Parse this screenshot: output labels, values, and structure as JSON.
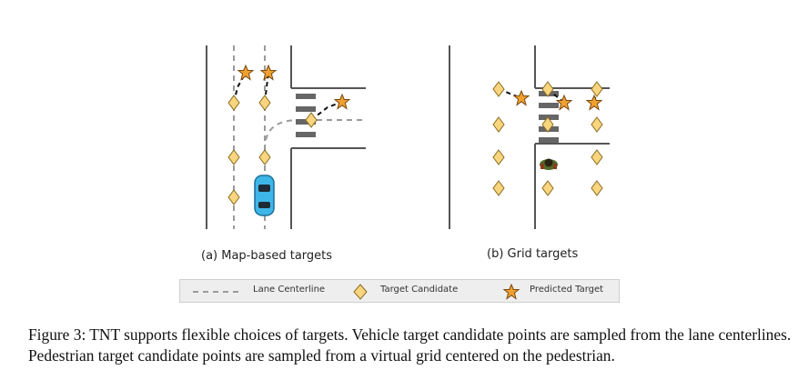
{
  "panels": {
    "a_label": "(a) Map-based targets",
    "b_label": "(b) Grid targets"
  },
  "legend": {
    "lane_centerline": "Lane Centerline",
    "target_candidate": "Target Candidate",
    "predicted_target": "Predicted Target"
  },
  "caption": {
    "text": "Figure 3: TNT supports flexible choices of targets. Vehicle target candidate points are sampled from the lane centerlines. Pedestrian target candidate points are sampled from a virtual grid centered on the pedestrian."
  },
  "colors": {
    "candidate": "#f8d57e",
    "star": "#f0a030",
    "vehicle": "#3fb6e8",
    "road": "#555555",
    "crosswalk": "#666666",
    "legend_bg": "#eeeeee"
  },
  "icons": {
    "candidate": "diamond-icon",
    "predicted": "star-icon",
    "vehicle": "car-icon",
    "pedestrian": "pedestrian-icon"
  }
}
